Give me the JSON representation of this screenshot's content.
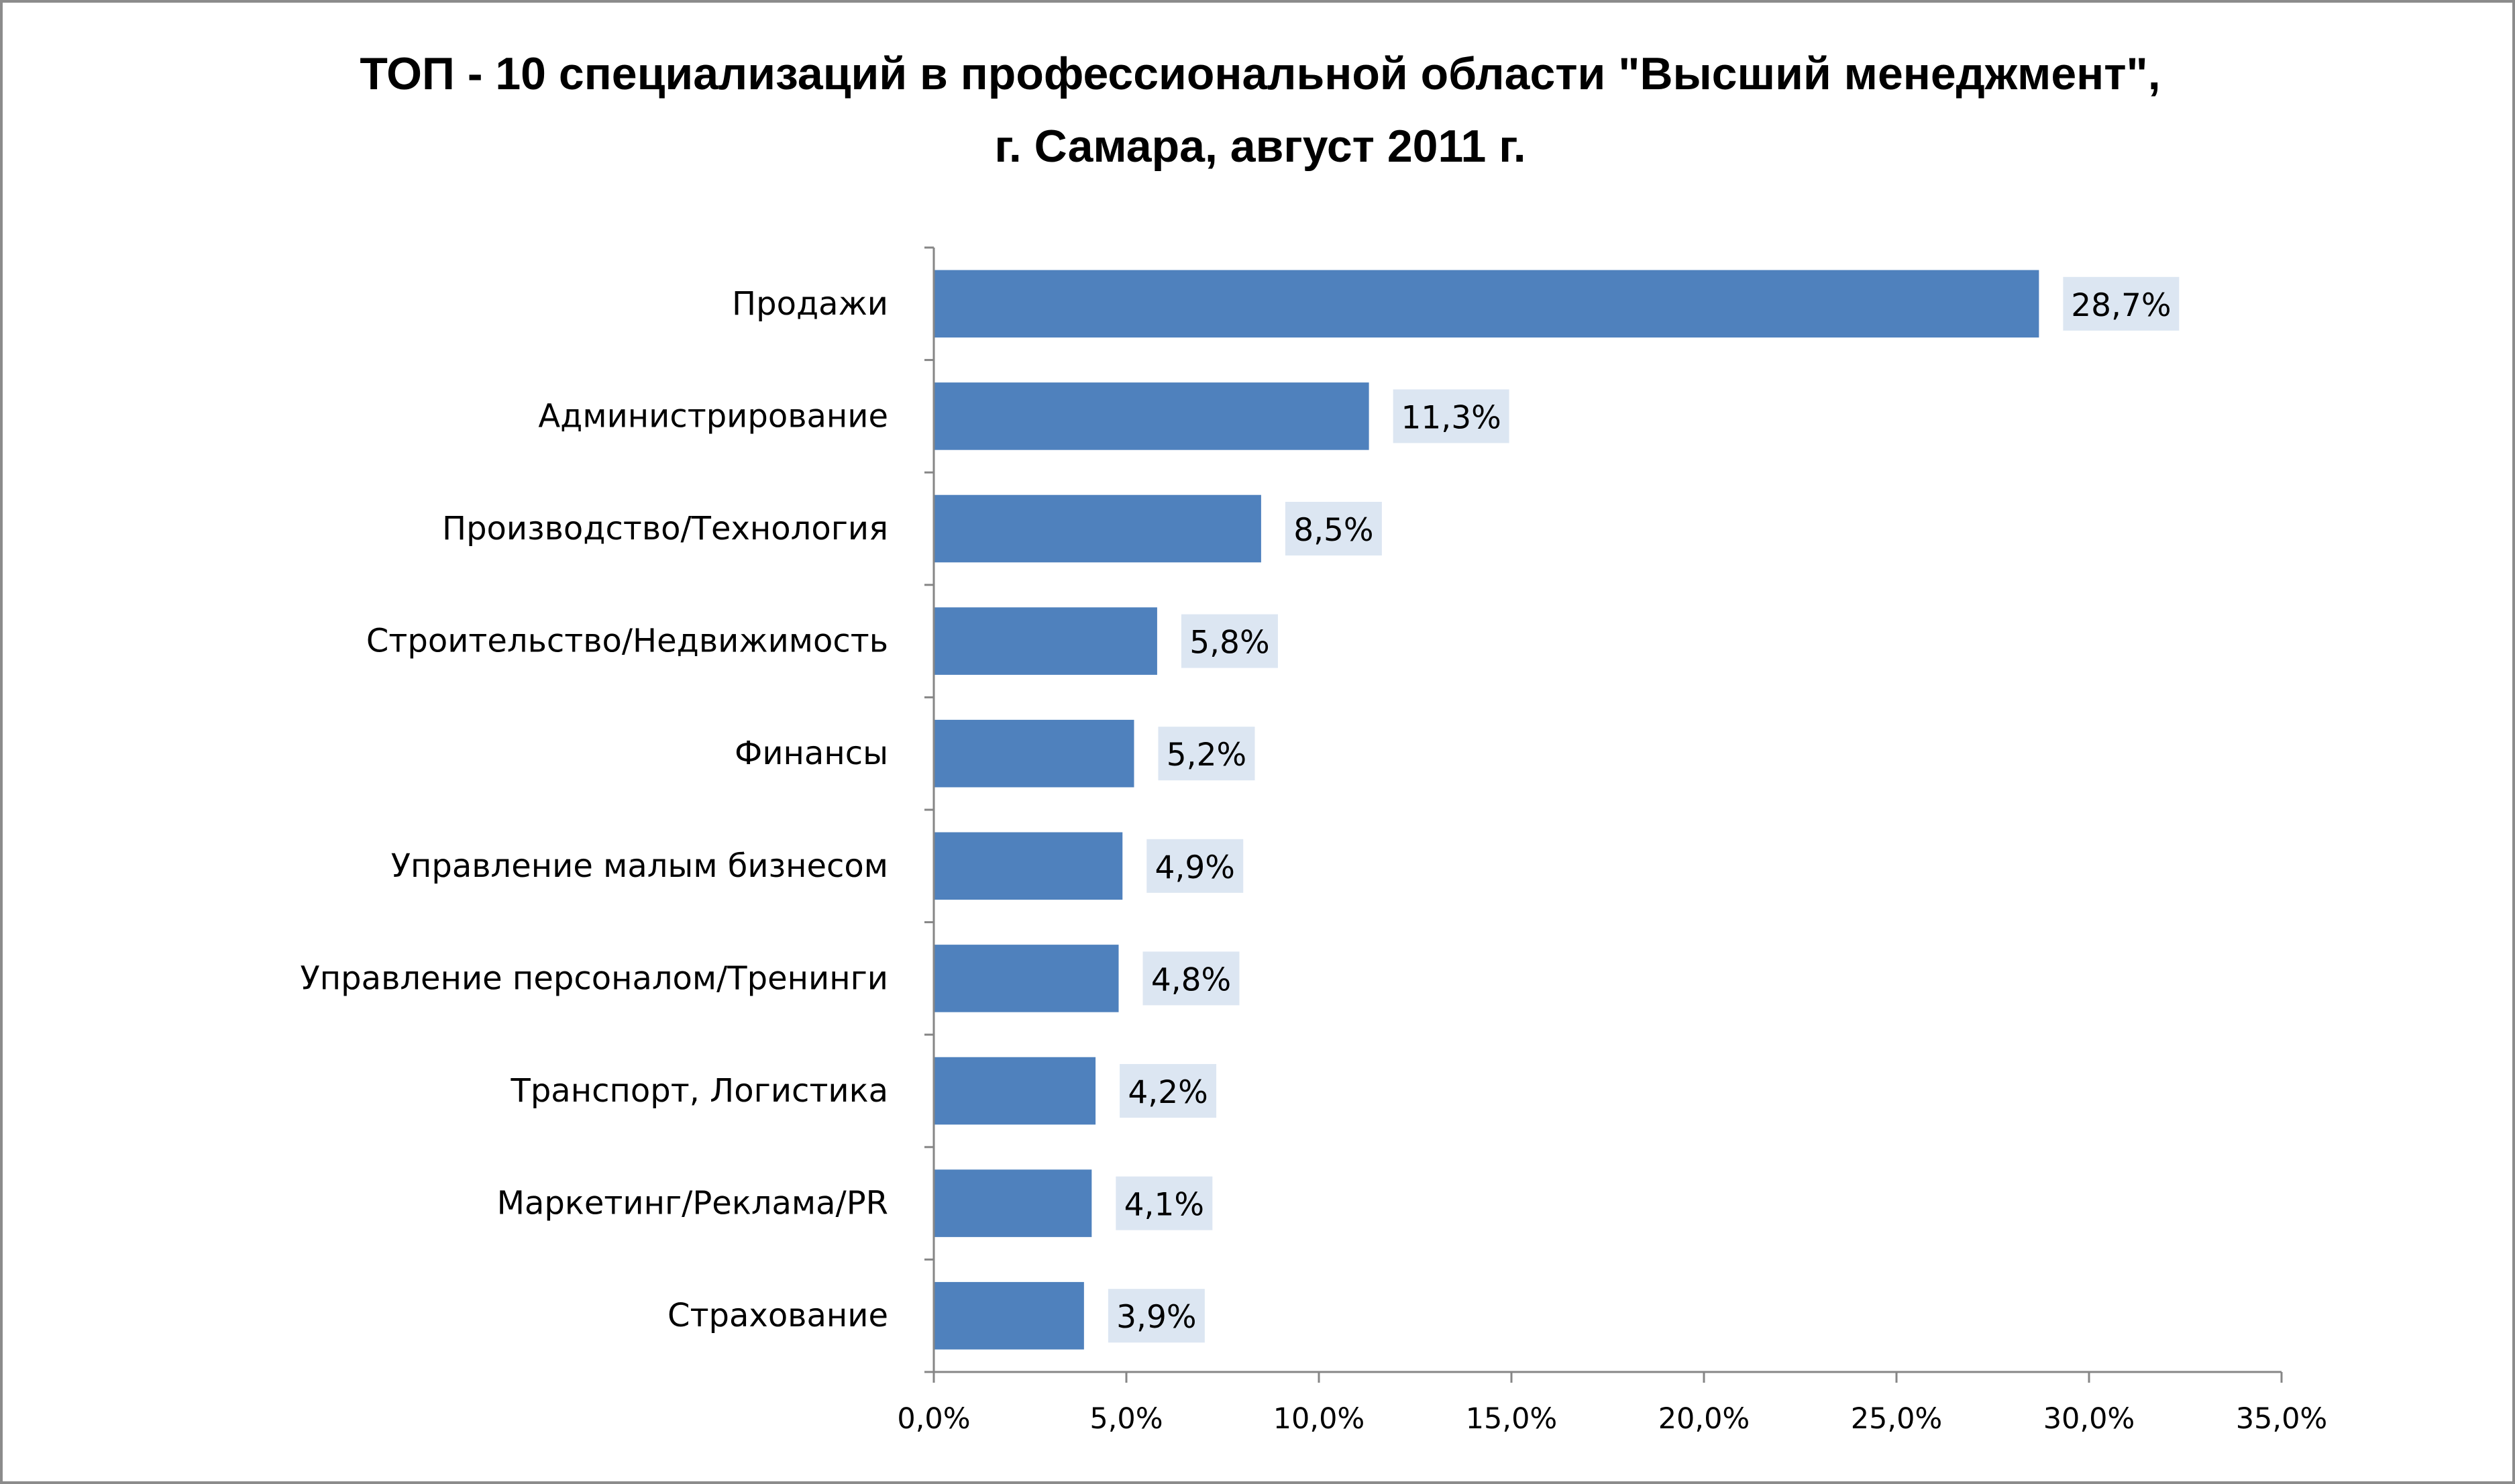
{
  "chart_data": {
    "type": "bar",
    "orientation": "horizontal",
    "title_line1": "ТОП - 10 специализаций в профессиональной области \"Высший менеджмент\",",
    "title_line2": "г. Самара, август 2011 г.",
    "categories": [
      "Продажи",
      "Администрирование",
      "Производство/Технология",
      "Строительство/Недвижимость",
      "Финансы",
      "Управление малым бизнесом",
      "Управление персоналом/Тренинги",
      "Транспорт, Логистика",
      "Маркетинг/Реклама/PR",
      "Страхование"
    ],
    "values": [
      28.7,
      11.3,
      8.5,
      5.8,
      5.2,
      4.9,
      4.8,
      4.2,
      4.1,
      3.9
    ],
    "data_labels": [
      "28,7%",
      "11,3%",
      "8,5%",
      "5,8%",
      "5,2%",
      "4,9%",
      "4,8%",
      "4,2%",
      "4,1%",
      "3,9%"
    ],
    "x_ticks": [
      0,
      5,
      10,
      15,
      20,
      25,
      30,
      35
    ],
    "x_tick_labels": [
      "0,0%",
      "5,0%",
      "10,0%",
      "15,0%",
      "20,0%",
      "25,0%",
      "30,0%",
      "35,0%"
    ],
    "xlim": [
      0,
      35
    ],
    "xlabel": "",
    "ylabel": "",
    "grid": false,
    "legend": "none",
    "colors": {
      "bar": "#4f81bd",
      "data_label_bg": "#dce6f2",
      "axis": "#868686",
      "frame": "#8c8c8c"
    }
  }
}
